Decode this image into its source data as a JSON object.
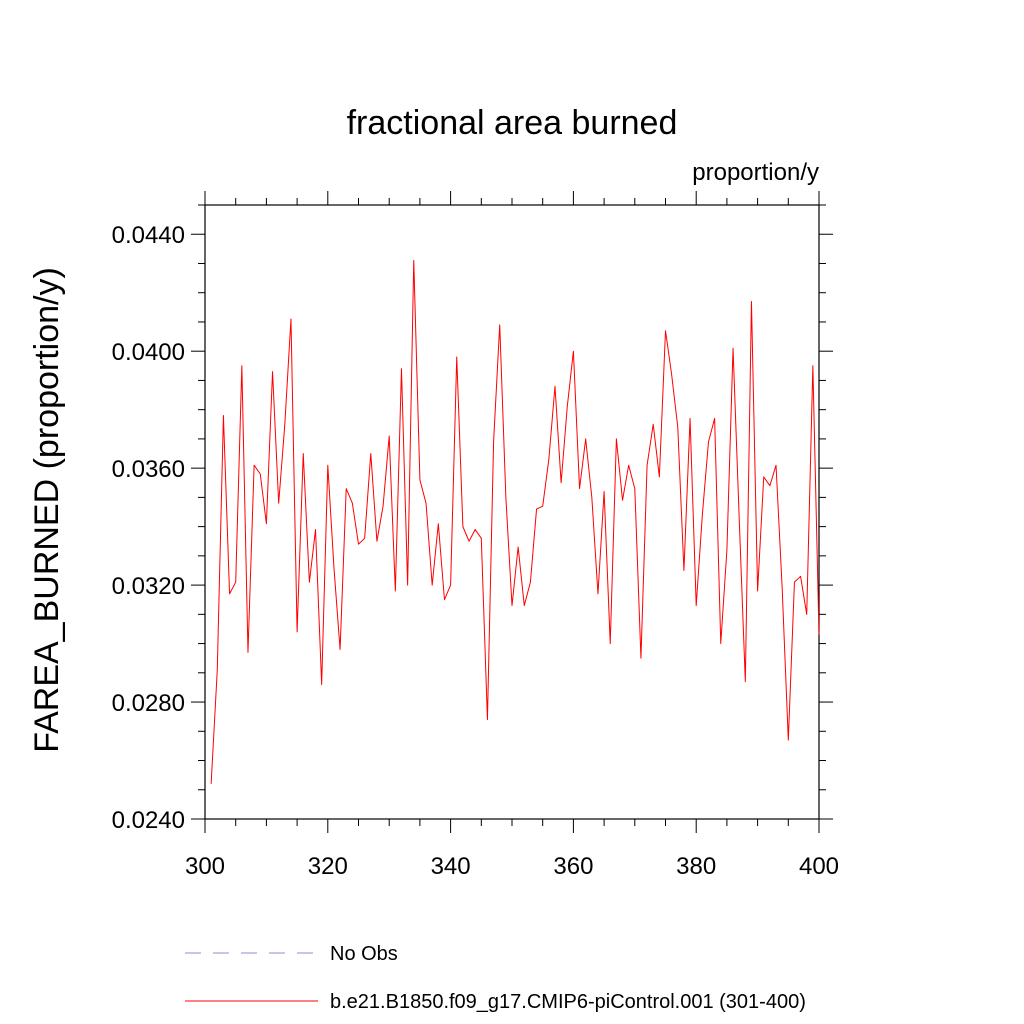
{
  "chart_data": {
    "type": "line",
    "title": "fractional area burned",
    "units": "proportion/y",
    "xlabel": "",
    "ylabel": "FAREA_BURNED  (proportion/y)",
    "xlim": [
      300,
      400
    ],
    "ylim": [
      0.024,
      0.045
    ],
    "xticks": [
      300,
      320,
      340,
      360,
      380,
      400
    ],
    "xtick_labels": [
      "300",
      "320",
      "340",
      "360",
      "380",
      "400"
    ],
    "yticks": [
      0.024,
      0.028,
      0.032,
      0.036,
      0.04,
      0.044
    ],
    "ytick_labels": [
      "0.0240",
      "0.0280",
      "0.0320",
      "0.0360",
      "0.0400",
      "0.0440"
    ],
    "grid": false,
    "legend": {
      "placement": "bottom",
      "entries": [
        {
          "label": "No Obs",
          "color": "#8c8cd6",
          "style": "dashed"
        },
        {
          "label": "b.e21.B1850.f09_g17.CMIP6-piControl.001 (301-400)",
          "color": "#ff0000",
          "style": "solid"
        }
      ]
    },
    "series": [
      {
        "name": "b.e21.B1850.f09_g17.CMIP6-piControl.001 (301-400)",
        "color": "#ff0000",
        "x": [
          301,
          302,
          303,
          304,
          305,
          306,
          307,
          308,
          309,
          310,
          311,
          312,
          313,
          314,
          315,
          316,
          317,
          318,
          319,
          320,
          321,
          322,
          323,
          324,
          325,
          326,
          327,
          328,
          329,
          330,
          331,
          332,
          333,
          334,
          335,
          336,
          337,
          338,
          339,
          340,
          341,
          342,
          343,
          344,
          345,
          346,
          347,
          348,
          349,
          350,
          351,
          352,
          353,
          354,
          355,
          356,
          357,
          358,
          359,
          360,
          361,
          362,
          363,
          364,
          365,
          366,
          367,
          368,
          369,
          370,
          371,
          372,
          373,
          374,
          375,
          376,
          377,
          378,
          379,
          380,
          381,
          382,
          383,
          384,
          385,
          386,
          387,
          388,
          389,
          390,
          391,
          392,
          393,
          394,
          395,
          396,
          397,
          398,
          399,
          400
        ],
        "y": [
          0.0252,
          0.0291,
          0.0378,
          0.0317,
          0.0321,
          0.0395,
          0.0297,
          0.0361,
          0.0358,
          0.0341,
          0.0393,
          0.0348,
          0.0375,
          0.0411,
          0.0304,
          0.0365,
          0.0321,
          0.0339,
          0.0286,
          0.0361,
          0.0326,
          0.0298,
          0.0353,
          0.0348,
          0.0334,
          0.0336,
          0.0365,
          0.0335,
          0.0347,
          0.0371,
          0.0318,
          0.0394,
          0.032,
          0.0431,
          0.0356,
          0.0348,
          0.032,
          0.0341,
          0.0315,
          0.032,
          0.0398,
          0.034,
          0.0335,
          0.0339,
          0.0336,
          0.0274,
          0.0369,
          0.0409,
          0.035,
          0.0313,
          0.0333,
          0.0313,
          0.0321,
          0.0346,
          0.0347,
          0.0363,
          0.0388,
          0.0355,
          0.0381,
          0.04,
          0.0353,
          0.037,
          0.035,
          0.0317,
          0.0352,
          0.03,
          0.037,
          0.0349,
          0.0361,
          0.0353,
          0.0295,
          0.0361,
          0.0375,
          0.0357,
          0.0407,
          0.0392,
          0.0374,
          0.0325,
          0.0377,
          0.0313,
          0.0344,
          0.0369,
          0.0377,
          0.03,
          0.0332,
          0.0401,
          0.0343,
          0.0287,
          0.0417,
          0.0318,
          0.0357,
          0.0354,
          0.0361,
          0.0319,
          0.0267,
          0.0321,
          0.0323,
          0.031,
          0.0395,
          0.0303
        ]
      }
    ]
  }
}
